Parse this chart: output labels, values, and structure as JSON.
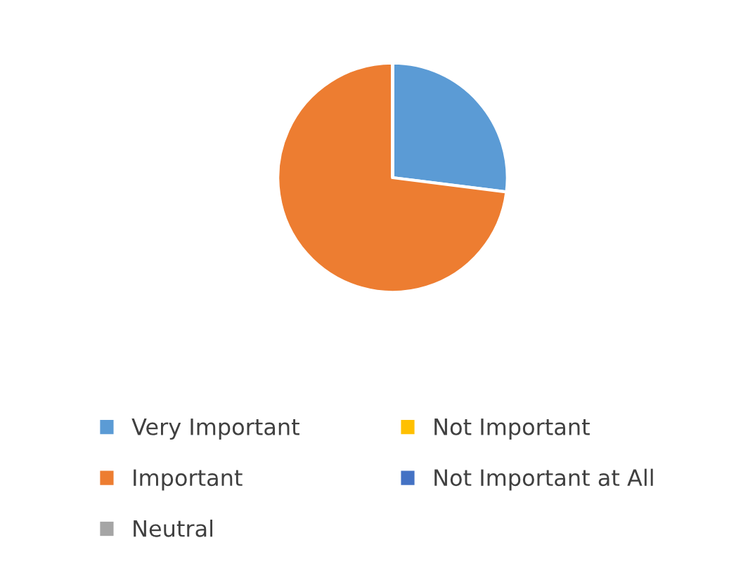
{
  "chart_data": {
    "type": "pie",
    "categories": [
      "Very Important",
      "Important",
      "Neutral",
      "Not Important",
      "Not Important at All"
    ],
    "values": [
      27,
      73,
      0,
      0,
      0
    ],
    "colors": [
      "#5b9bd5",
      "#ed7d31",
      "#a5a5a5",
      "#ffc000",
      "#4472c4"
    ],
    "legend": "bottom"
  }
}
